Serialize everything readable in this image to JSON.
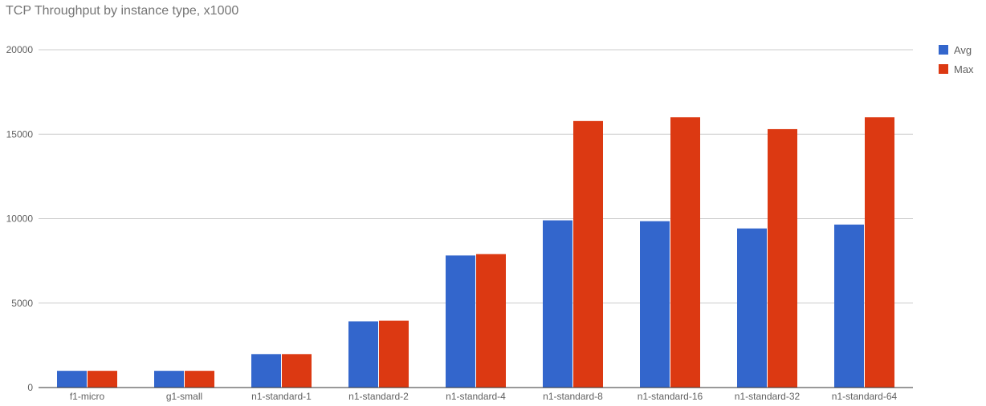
{
  "chart_data": {
    "type": "bar",
    "title": "TCP Throughput by instance type, x1000",
    "xlabel": "",
    "ylabel": "",
    "categories": [
      "f1-micro",
      "g1-small",
      "n1-standard-1",
      "n1-standard-2",
      "n1-standard-4",
      "n1-standard-8",
      "n1-standard-16",
      "n1-standard-32",
      "n1-standard-64"
    ],
    "series": [
      {
        "name": "Avg",
        "color": "#3366cc",
        "values": [
          990,
          990,
          1980,
          3920,
          7820,
          9900,
          9850,
          9420,
          9650
        ]
      },
      {
        "name": "Max",
        "color": "#dc3912",
        "values": [
          990,
          990,
          1980,
          3960,
          7900,
          15780,
          16000,
          15300,
          16000
        ]
      }
    ],
    "ylim": [
      0,
      20000
    ],
    "yticks": [
      0,
      5000,
      10000,
      15000,
      20000
    ],
    "grid": true,
    "legend_position": "right"
  }
}
